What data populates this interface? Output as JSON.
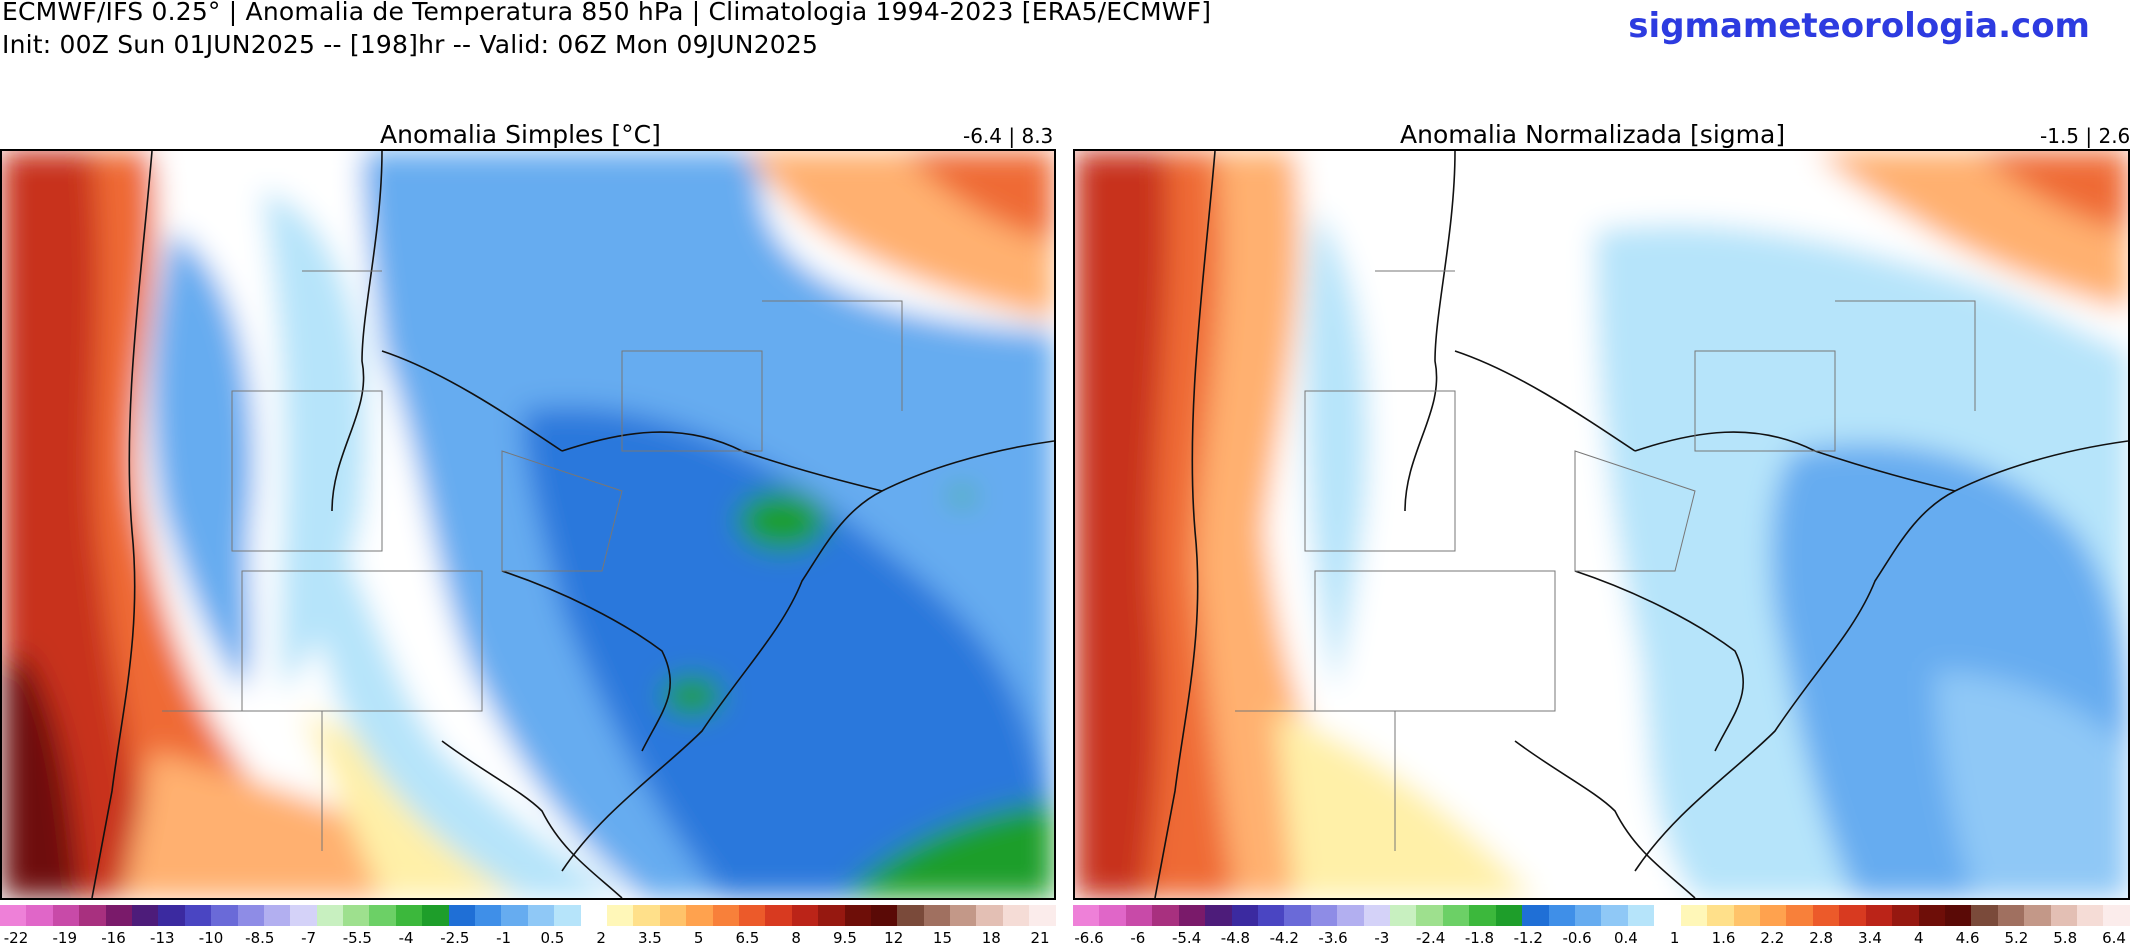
{
  "header": {
    "line1": "ECMWF/IFS 0.25° | Anomalia de Temperatura 850 hPa | Climatologia 1994-2023 [ERA5/ECMWF]",
    "line2": "Init: 00Z Sun 01JUN2025 -- [198]hr -- Valid: 06Z Mon 09JUN2025",
    "brand": "sigmameteorologia.com",
    "brand_color": "#2d3be0"
  },
  "panels": [
    {
      "title": "Anomalia Simples [°C]",
      "range_text": "-6.4 | 8.3",
      "colorbar_ticks": [
        "-22",
        "-19",
        "-16",
        "-13",
        "-10",
        "-8.5",
        "-7",
        "-5.5",
        "-4",
        "-2.5",
        "-1",
        "0.5",
        "2",
        "3.5",
        "5",
        "6.5",
        "8",
        "9.5",
        "12",
        "15",
        "18",
        "21"
      ],
      "colorbar_colors": [
        "#ee80d8",
        "#e066c8",
        "#c84aa8",
        "#a8307f",
        "#7a1a6a",
        "#4d1c7a",
        "#3b2aa0",
        "#4a45c2",
        "#6a6ad8",
        "#8e8ce6",
        "#b2aff0",
        "#d4d2f8",
        "#c8f0c0",
        "#9ee08e",
        "#6cd066",
        "#3cb83c",
        "#1e9e2a",
        "#1f6fd6",
        "#3f8fe8",
        "#66acf0",
        "#8fc8f6",
        "#b6e4fa",
        "#ffffff",
        "#fff7b8",
        "#ffe08a",
        "#ffc36a",
        "#ffa24e",
        "#f8803a",
        "#ec5a2a",
        "#d83a20",
        "#bb2418",
        "#961810",
        "#6e0e08",
        "#5a0a06",
        "#7a4a3a",
        "#a07060",
        "#c39888",
        "#e3bfb4",
        "#f5dcd6",
        "#fbeceb"
      ]
    },
    {
      "title": "Anomalia Normalizada [sigma]",
      "range_text": "-1.5 | 2.6",
      "colorbar_ticks": [
        "-6.6",
        "-6",
        "-5.4",
        "-4.8",
        "-4.2",
        "-3.6",
        "-3",
        "-2.4",
        "-1.8",
        "-1.2",
        "-0.6",
        "0.4",
        "1",
        "1.6",
        "2.2",
        "2.8",
        "3.4",
        "4",
        "4.6",
        "5.2",
        "5.8",
        "6.4"
      ],
      "colorbar_colors": [
        "#ee80d8",
        "#e066c8",
        "#c84aa8",
        "#a8307f",
        "#7a1a6a",
        "#4d1c7a",
        "#3b2aa0",
        "#4a45c2",
        "#6a6ad8",
        "#8e8ce6",
        "#b2aff0",
        "#d4d2f8",
        "#c8f0c0",
        "#9ee08e",
        "#6cd066",
        "#3cb83c",
        "#1e9e2a",
        "#1f6fd6",
        "#3f8fe8",
        "#66acf0",
        "#8fc8f6",
        "#b6e4fa",
        "#ffffff",
        "#fff7b8",
        "#ffe08a",
        "#ffc36a",
        "#ffa24e",
        "#f8803a",
        "#ec5a2a",
        "#d83a20",
        "#bb2418",
        "#961810",
        "#6e0e08",
        "#5a0a06",
        "#7a4a3a",
        "#a07060",
        "#c39888",
        "#e3bfb4",
        "#f5dcd6",
        "#fbeceb"
      ]
    }
  ],
  "field_colors": {
    "strong_warm": "#c8321c",
    "warm": "#ef6a34",
    "mild_warm": "#ffb070",
    "slight_warm": "#fff0a8",
    "neutral": "#ffffff",
    "slight_cool": "#b6e4fa",
    "cool": "#66acf0",
    "cold": "#2a78dc",
    "very_cold": "#1e9e2a",
    "dark_warm": "#6e0e08"
  }
}
